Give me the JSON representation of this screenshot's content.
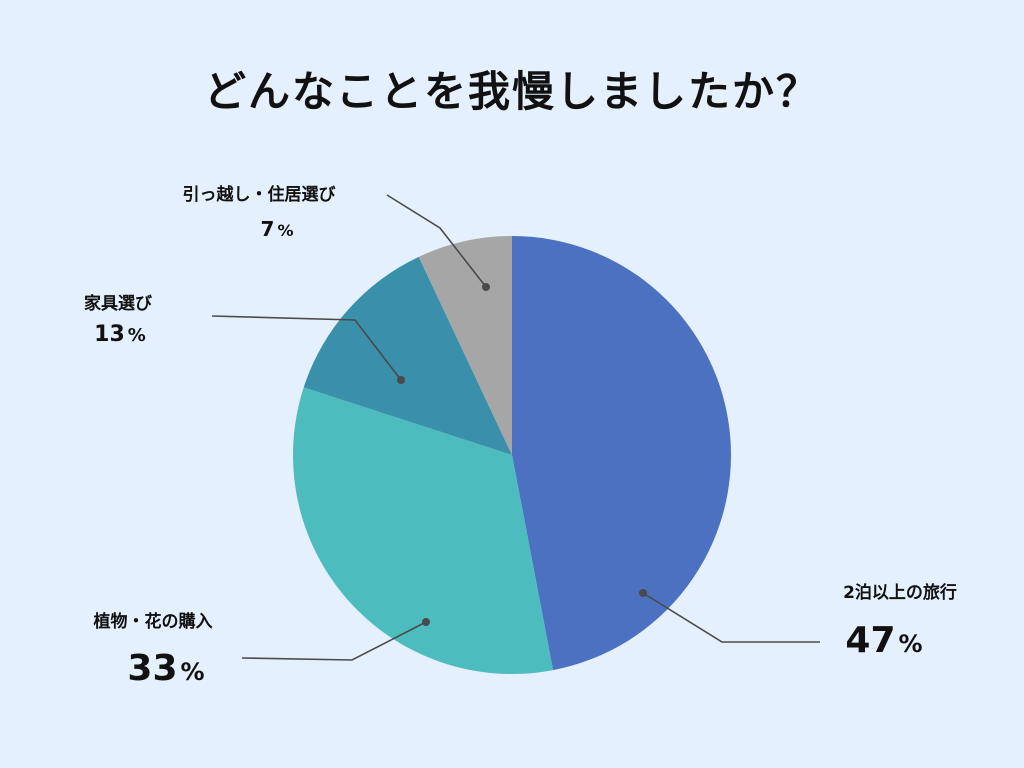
{
  "chart_data": {
    "type": "pie",
    "title": "どんなことを我慢しましたか？",
    "slices": [
      {
        "label": "2泊以上の旅行",
        "value": 47,
        "display": "47",
        "color": "#4c71c1"
      },
      {
        "label": "植物・花の購入",
        "value": 33,
        "display": "33",
        "color": "#4dbcbe"
      },
      {
        "label": "家具選び",
        "value": 13,
        "display": "13",
        "color": "#3a90aa"
      },
      {
        "label": "引っ越し・住居選び",
        "value": 7,
        "display": "7",
        "color": "#a6a6a6"
      }
    ],
    "unit": "%",
    "start": "top",
    "direction": "clockwise"
  }
}
